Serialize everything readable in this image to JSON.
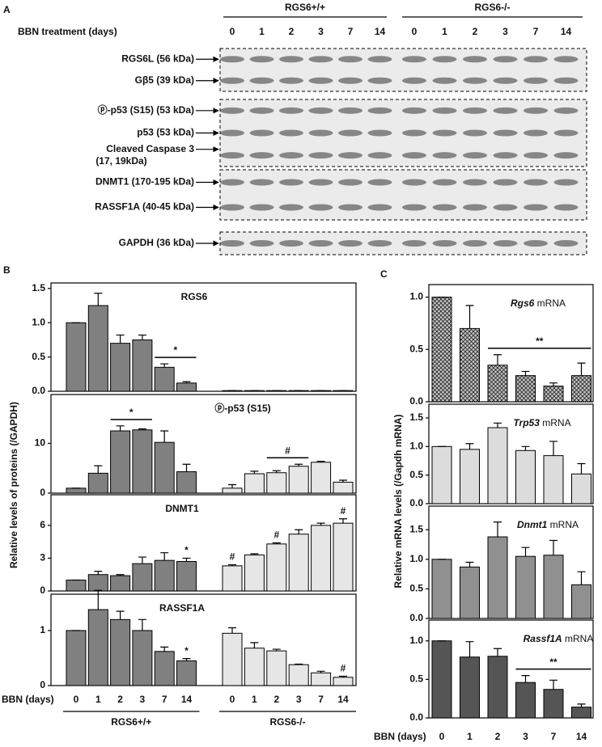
{
  "panel_a": {
    "label": "A",
    "groups": [
      "RGS6+/+",
      "RGS6-/-"
    ],
    "treatment_label": "BBN treatment (days)",
    "lanes": [
      "0",
      "1",
      "2",
      "3",
      "7",
      "14",
      "0",
      "1",
      "2",
      "3",
      "7",
      "14"
    ],
    "boxes": [
      [
        [
          "RGS6L (56 kDa)"
        ],
        [
          "Gβ5 (39 kDa)"
        ]
      ],
      [
        [
          "ⓟ-p53 (S15) (53 kDa)"
        ],
        [
          "p53 (53 kDa)"
        ],
        [
          "Cleaved Caspase 3",
          "(17, 19kDa)"
        ]
      ],
      [
        [
          "DNMT1 (170-195 kDa)"
        ],
        [
          "RASSF1A (40-45 kDa)"
        ]
      ],
      [
        [
          "GAPDH (36 kDa)"
        ]
      ]
    ]
  },
  "chart_data": [
    {
      "type": "bar",
      "panel": "B",
      "y_label": "Relative levels of proteins (/GAPDH)",
      "title": "RGS6",
      "series": [
        {
          "color": "#808080",
          "values": [
            1.0,
            1.25,
            0.7,
            0.75,
            0.35,
            0.12,
            null,
            null,
            null,
            null,
            null,
            null
          ],
          "errors": [
            0,
            0.18,
            0.12,
            0.07,
            0.05,
            0.02,
            null,
            null,
            null,
            null,
            null,
            null
          ]
        },
        {
          "color": "#e6e6e6",
          "values": [
            null,
            null,
            null,
            null,
            null,
            null,
            0.01,
            0.01,
            0.01,
            0.01,
            0.01,
            0.01
          ],
          "errors": [
            null,
            null,
            null,
            null,
            null,
            null,
            0,
            0,
            0,
            0,
            0,
            0
          ]
        }
      ],
      "ylim": [
        0,
        1.58
      ],
      "yticks": [
        {
          "value": 0,
          "label": "0.0"
        },
        0.5,
        {
          "value": 1,
          "label": "1.0"
        },
        1.5
      ],
      "annotations": [
        {
          "text": "*",
          "from": 4,
          "to": 5
        }
      ]
    },
    {
      "type": "bar",
      "title": "ⓟ-p53 (S15)",
      "series": [
        {
          "color": "#808080",
          "values": [
            1.0,
            4.0,
            12.5,
            12.7,
            10.2,
            4.3,
            null,
            null,
            null,
            null,
            null,
            null
          ],
          "errors": [
            0,
            1.5,
            1.0,
            0.2,
            2.3,
            1.5,
            null,
            null,
            null,
            null,
            null,
            null
          ]
        },
        {
          "color": "#e6e6e6",
          "values": [
            null,
            null,
            null,
            null,
            null,
            null,
            1.0,
            3.9,
            4.1,
            5.4,
            6.2,
            2.2
          ],
          "errors": [
            null,
            null,
            null,
            null,
            null,
            null,
            0.7,
            0.5,
            0.4,
            0.4,
            0.2,
            0.4
          ]
        }
      ],
      "ylim": [
        0,
        19.8
      ],
      "yticks": [
        0,
        10
      ],
      "annotations": [
        {
          "text": "*",
          "from": 2,
          "to": 3
        },
        {
          "text": "#",
          "from": 8,
          "to": 9
        }
      ]
    },
    {
      "type": "bar",
      "title": "DNMT1",
      "series": [
        {
          "color": "#808080",
          "values": [
            1.0,
            1.5,
            1.4,
            2.5,
            2.8,
            2.7,
            null,
            null,
            null,
            null,
            null,
            null
          ],
          "errors": [
            0,
            0.3,
            0.1,
            0.6,
            0.7,
            0.3,
            null,
            null,
            null,
            null,
            null,
            null
          ]
        },
        {
          "color": "#e6e6e6",
          "values": [
            null,
            null,
            null,
            null,
            null,
            null,
            2.3,
            3.3,
            4.3,
            5.2,
            6.0,
            6.2
          ],
          "errors": [
            null,
            null,
            null,
            null,
            null,
            null,
            0.1,
            0.1,
            0.1,
            0.4,
            0.2,
            0.4
          ]
        }
      ],
      "ylim": [
        0,
        8.8
      ],
      "yticks": [
        0,
        3,
        6
      ],
      "annotations": [
        {
          "text": "*",
          "from": 5,
          "to": 5
        },
        {
          "text": "#",
          "from": 6,
          "to": 6
        },
        {
          "text": "#",
          "from": 8,
          "to": 8
        },
        {
          "text": "#",
          "from": 11,
          "to": 11
        }
      ]
    },
    {
      "type": "bar",
      "title": "RASSF1A",
      "x_label": "BBN (days)",
      "categories": [
        "0",
        "1",
        "2",
        "3",
        "7",
        "14",
        "0",
        "1",
        "2",
        "3",
        "7",
        "14"
      ],
      "series": [
        {
          "name": "RGS6+/+",
          "color": "#808080",
          "values": [
            1.0,
            1.38,
            1.2,
            1.0,
            0.62,
            0.45,
            null,
            null,
            null,
            null,
            null,
            null
          ],
          "errors": [
            0,
            0.35,
            0.15,
            0.2,
            0.08,
            0.04,
            null,
            null,
            null,
            null,
            null,
            null
          ]
        },
        {
          "name": "RGS6-/-",
          "color": "#e6e6e6",
          "values": [
            null,
            null,
            null,
            null,
            null,
            null,
            0.95,
            0.68,
            0.63,
            0.38,
            0.23,
            0.15
          ],
          "errors": [
            null,
            null,
            null,
            null,
            null,
            null,
            0.1,
            0.1,
            0.03,
            0.01,
            0.03,
            0.02
          ]
        }
      ],
      "ylim": [
        0,
        1.66
      ],
      "yticks": [
        0,
        1
      ],
      "annotations": [
        {
          "text": "*",
          "from": 5,
          "to": 5
        },
        {
          "text": "#",
          "from": 11,
          "to": 11
        }
      ]
    },
    {
      "type": "bar",
      "panel": "C",
      "y_label": "Relative mRNA levels (/Gapdh mRNA)",
      "gene": "Rgs6",
      "title": "mRNA",
      "series": [
        {
          "color": "#c8c8c8",
          "pattern": "crosshatch",
          "values": [
            1.0,
            0.7,
            0.35,
            0.25,
            0.15,
            0.25
          ],
          "errors": [
            0,
            0.22,
            0.1,
            0.04,
            0.03,
            0.12
          ]
        }
      ],
      "ylim": [
        0,
        1.12
      ],
      "yticks": [
        {
          "value": 0,
          "label": "0.0"
        },
        0.5,
        {
          "value": 1,
          "label": "1.0"
        }
      ],
      "annotations": [
        {
          "text": "**",
          "from": 2,
          "to": 5
        }
      ]
    },
    {
      "type": "bar",
      "gene": "Trp53",
      "title": "mRNA",
      "series": [
        {
          "color": "#dcdcdc",
          "values": [
            1.0,
            0.95,
            1.33,
            0.93,
            0.84,
            0.52
          ],
          "errors": [
            0,
            0.1,
            0.08,
            0.07,
            0.25,
            0.18
          ]
        }
      ],
      "ylim": [
        0,
        1.74
      ],
      "yticks": [
        {
          "value": 0,
          "label": "0.0"
        },
        0.5,
        {
          "value": 1,
          "label": "1.0"
        },
        1.5
      ]
    },
    {
      "type": "bar",
      "gene": "Dnmt1",
      "title": "mRNA",
      "series": [
        {
          "color": "#909090",
          "values": [
            1.0,
            0.87,
            1.38,
            1.05,
            1.07,
            0.57
          ],
          "errors": [
            0,
            0.08,
            0.25,
            0.15,
            0.25,
            0.22
          ]
        }
      ],
      "ylim": [
        0,
        1.9
      ],
      "yticks": [
        {
          "value": 0,
          "label": "0.0"
        },
        0.5,
        {
          "value": 1,
          "label": "1.0"
        },
        1.5
      ]
    },
    {
      "type": "bar",
      "gene": "Rassf1A",
      "title": "mRNA",
      "x_label": "BBN (days)",
      "categories": [
        "0",
        "1",
        "2",
        "3",
        "7",
        "14"
      ],
      "series": [
        {
          "color": "#555555",
          "values": [
            1.0,
            0.79,
            0.8,
            0.46,
            0.37,
            0.14
          ],
          "errors": [
            0,
            0.2,
            0.1,
            0.09,
            0.12,
            0.04
          ]
        }
      ],
      "ylim": [
        0,
        1.27
      ],
      "yticks": [
        {
          "value": 0,
          "label": "0.0"
        },
        0.5,
        {
          "value": 1,
          "label": "1.0"
        }
      ],
      "annotations": [
        {
          "text": "**",
          "from": 3,
          "to": 5
        }
      ]
    }
  ]
}
